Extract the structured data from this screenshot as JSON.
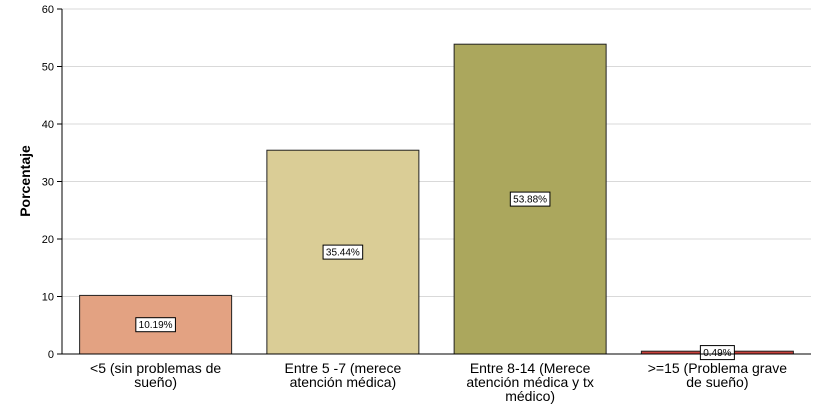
{
  "chart_data": {
    "type": "bar",
    "ylabel": "Porcentaje",
    "xlabel": "",
    "ylim": [
      0,
      60
    ],
    "yticks": [
      0,
      10,
      20,
      30,
      40,
      50,
      60
    ],
    "grid": true,
    "categories": [
      [
        "<5 (sin problemas de",
        "sueño)"
      ],
      [
        "Entre 5 -7 (merece",
        "atención médica)"
      ],
      [
        "Entre 8-14 (Merece",
        "atención médica y tx",
        "médico)"
      ],
      [
        ">=15 (Problema grave",
        "de sueño)"
      ]
    ],
    "values": [
      10.19,
      35.44,
      53.88,
      0.49
    ],
    "data_labels": [
      "10.19%",
      "35.44%",
      "53.88%",
      "0.49%"
    ],
    "colors": [
      "#e3a282",
      "#dacd96",
      "#aba75d",
      "#c7413b"
    ]
  }
}
